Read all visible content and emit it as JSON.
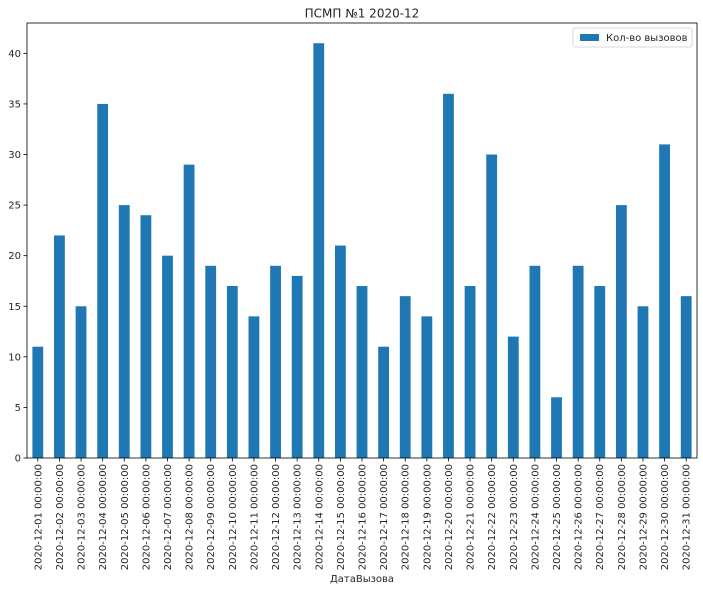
{
  "chart_data": {
    "type": "bar",
    "title": "ПСМП №1 2020-12",
    "xlabel": "ДатаВызова",
    "ylabel": "",
    "ylim": [
      0,
      43
    ],
    "yticks": [
      0,
      5,
      10,
      15,
      20,
      25,
      30,
      35,
      40
    ],
    "legend_position": "top-right",
    "grid": false,
    "color": "#1f77b4",
    "categories": [
      "2020-12-01 00:00:00",
      "2020-12-02 00:00:00",
      "2020-12-03 00:00:00",
      "2020-12-04 00:00:00",
      "2020-12-05 00:00:00",
      "2020-12-06 00:00:00",
      "2020-12-07 00:00:00",
      "2020-12-08 00:00:00",
      "2020-12-09 00:00:00",
      "2020-12-10 00:00:00",
      "2020-12-11 00:00:00",
      "2020-12-12 00:00:00",
      "2020-12-13 00:00:00",
      "2020-12-14 00:00:00",
      "2020-12-15 00:00:00",
      "2020-12-16 00:00:00",
      "2020-12-17 00:00:00",
      "2020-12-18 00:00:00",
      "2020-12-19 00:00:00",
      "2020-12-20 00:00:00",
      "2020-12-21 00:00:00",
      "2020-12-22 00:00:00",
      "2020-12-23 00:00:00",
      "2020-12-24 00:00:00",
      "2020-12-25 00:00:00",
      "2020-12-26 00:00:00",
      "2020-12-27 00:00:00",
      "2020-12-28 00:00:00",
      "2020-12-29 00:00:00",
      "2020-12-30 00:00:00",
      "2020-12-31 00:00:00"
    ],
    "series": [
      {
        "name": "Кол-во вызовов",
        "values": [
          11,
          22,
          15,
          35,
          25,
          24,
          20,
          29,
          19,
          17,
          14,
          19,
          18,
          41,
          21,
          17,
          11,
          16,
          14,
          36,
          17,
          30,
          12,
          19,
          6,
          19,
          17,
          25,
          15,
          31,
          16
        ]
      }
    ]
  }
}
